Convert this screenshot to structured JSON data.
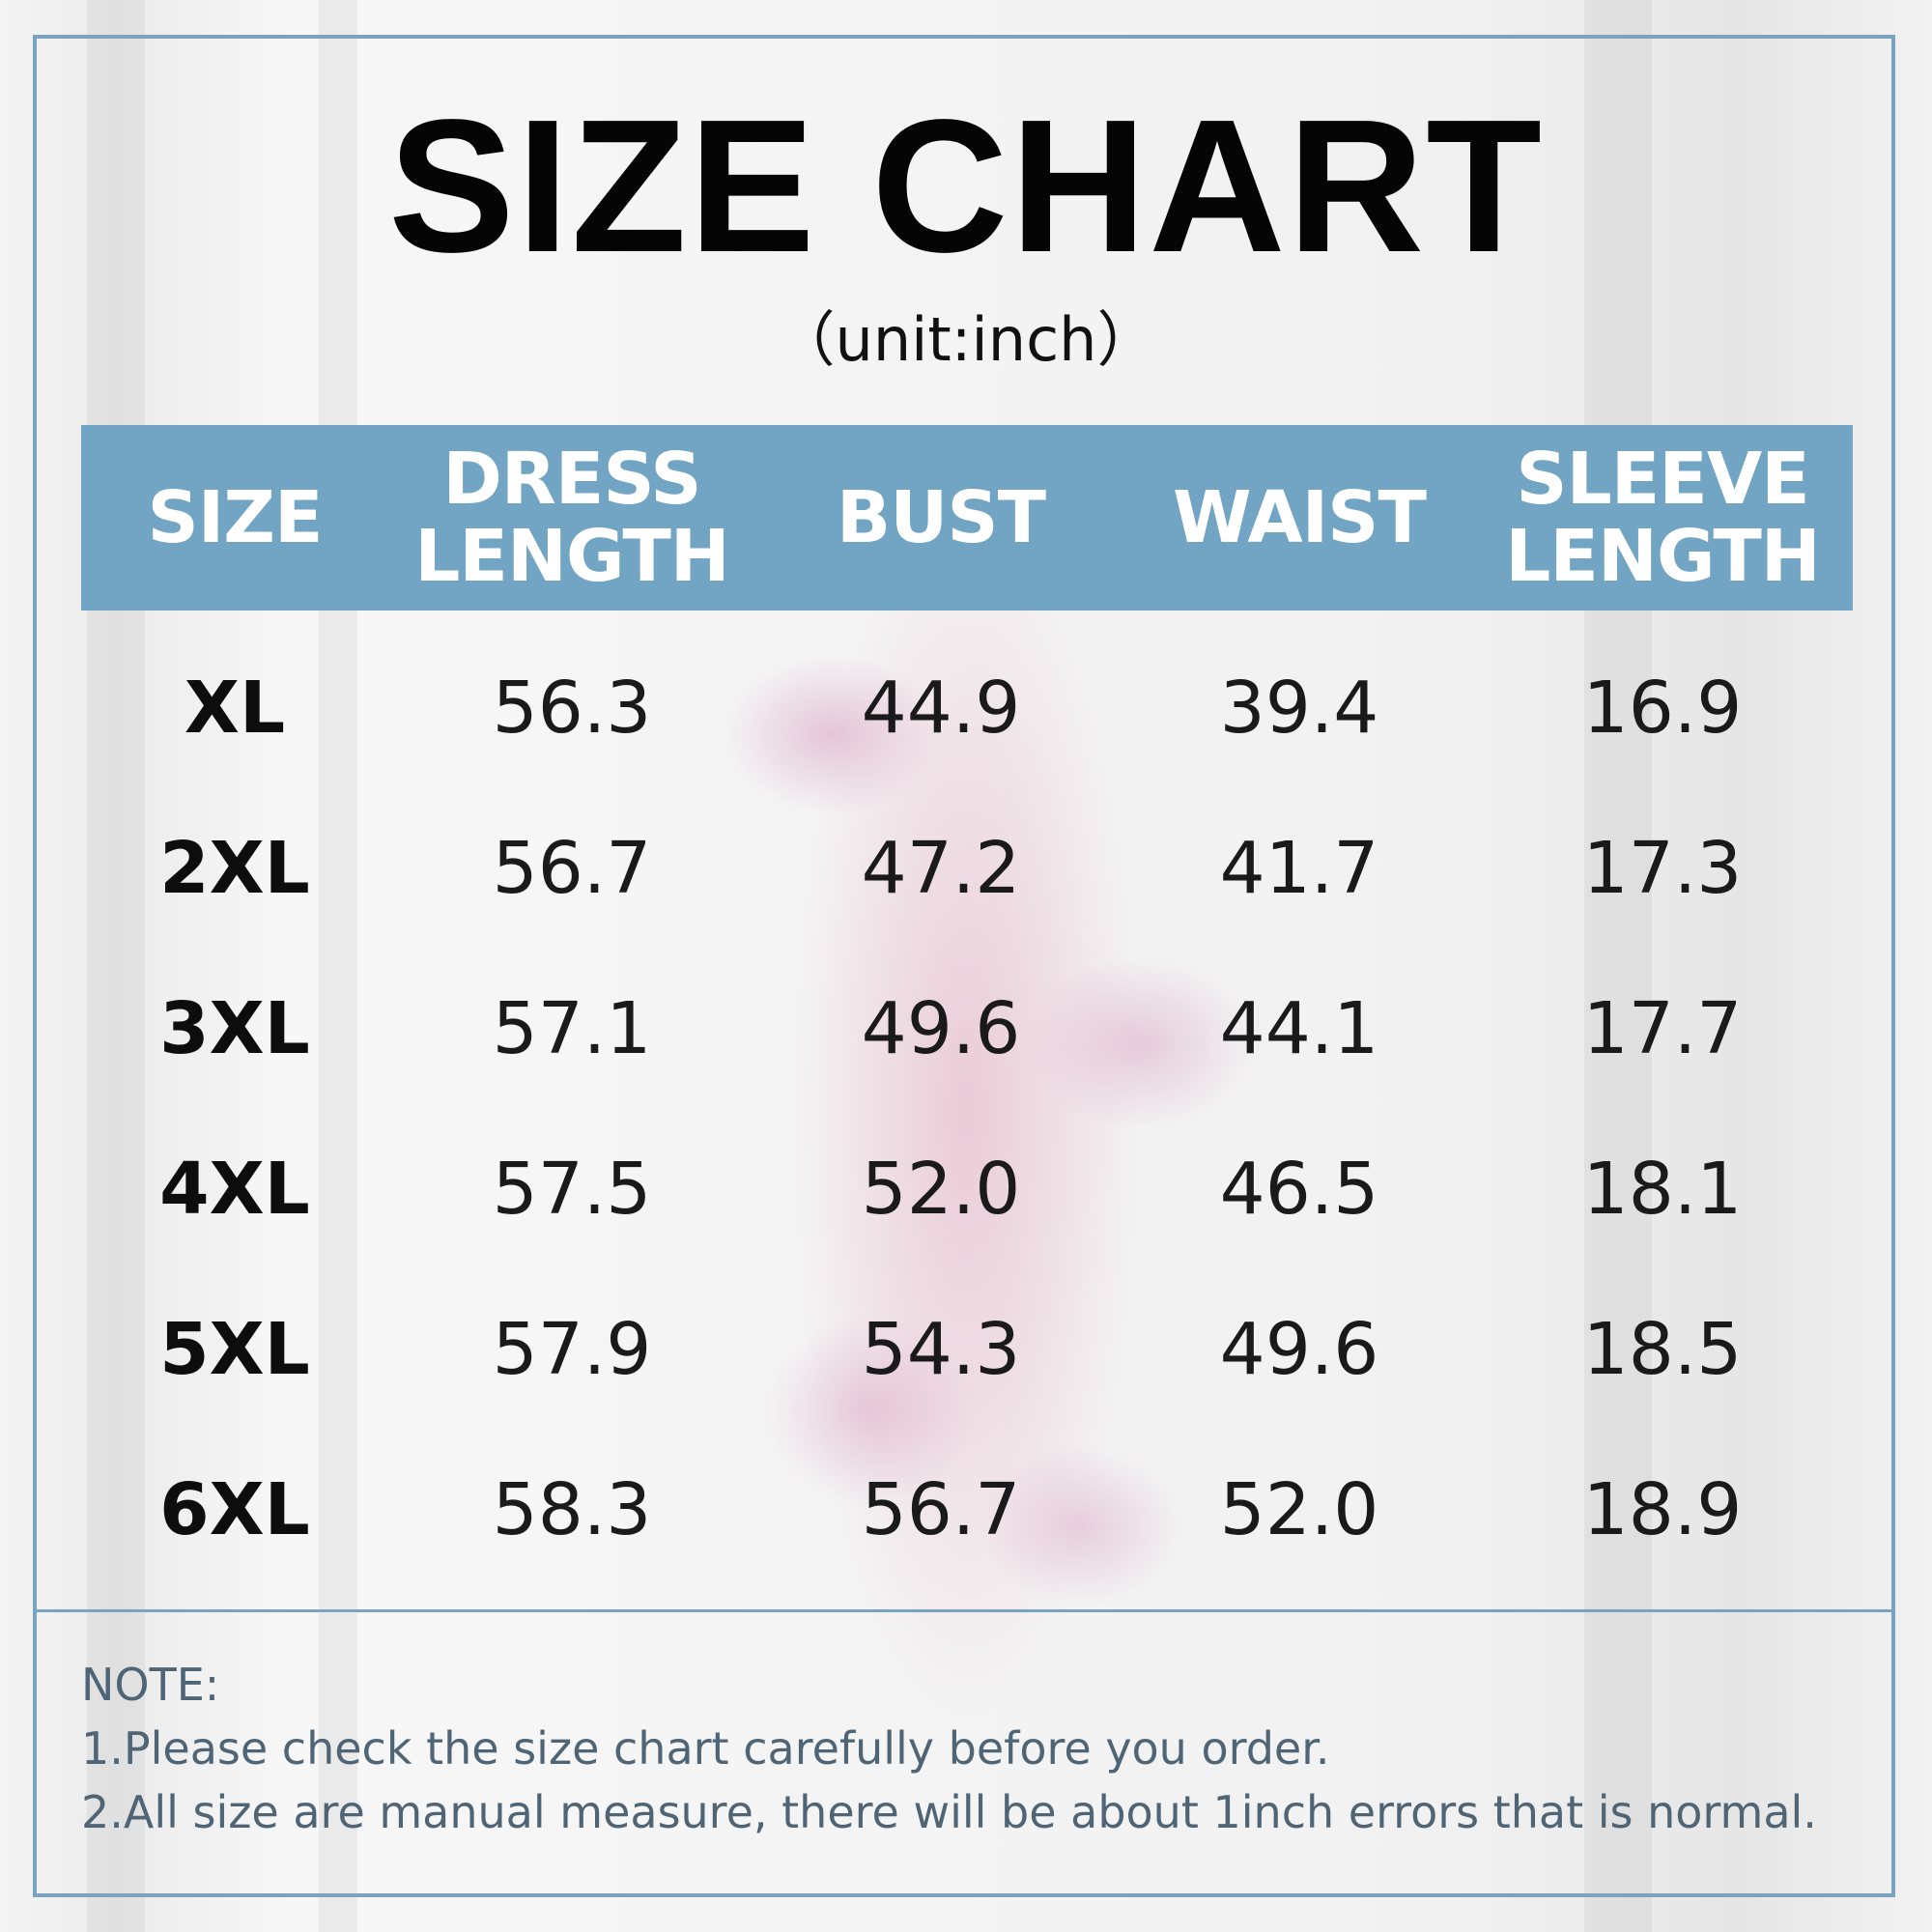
{
  "title": "SIZE CHART",
  "unit": "（unit:inch）",
  "columns": [
    {
      "line1": "SIZE",
      "line2": ""
    },
    {
      "line1": "DRESS",
      "line2": "LENGTH"
    },
    {
      "line1": "BUST",
      "line2": ""
    },
    {
      "line1": "WAIST",
      "line2": ""
    },
    {
      "line1": "SLEEVE",
      "line2": "LENGTH"
    }
  ],
  "rows": [
    {
      "size": "XL",
      "dress_length": "56.3",
      "bust": "44.9",
      "waist": "39.4",
      "sleeve_length": "16.9"
    },
    {
      "size": "2XL",
      "dress_length": "56.7",
      "bust": "47.2",
      "waist": "41.7",
      "sleeve_length": "17.3"
    },
    {
      "size": "3XL",
      "dress_length": "57.1",
      "bust": "49.6",
      "waist": "44.1",
      "sleeve_length": "17.7"
    },
    {
      "size": "4XL",
      "dress_length": "57.5",
      "bust": "52.0",
      "waist": "46.5",
      "sleeve_length": "18.1"
    },
    {
      "size": "5XL",
      "dress_length": "57.9",
      "bust": "54.3",
      "waist": "49.6",
      "sleeve_length": "18.5"
    },
    {
      "size": "6XL",
      "dress_length": "58.3",
      "bust": "56.7",
      "waist": "52.0",
      "sleeve_length": "18.9"
    }
  ],
  "note": {
    "heading": "NOTE:",
    "line1": "1.Please check the size chart carefully before you order.",
    "line2": "2.All size are manual measure, there will be about 1inch errors that is normal."
  },
  "colors": {
    "header_band": "#72a5c3",
    "frame": "#7aa3c0",
    "note_text": "#4f6576"
  }
}
